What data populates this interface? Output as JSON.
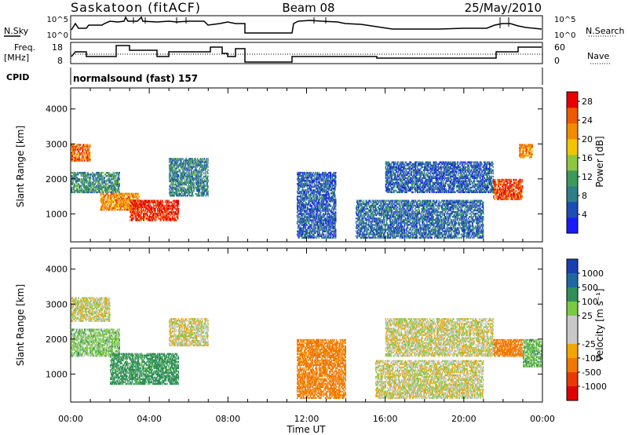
{
  "header": {
    "station": "Saskatoon (fitACF)",
    "beam": "Beam 08",
    "date": "25/May/2010"
  },
  "top_panels": {
    "nsky_label": "N.Sky",
    "nsky_ticks": [
      "10^5",
      "10^0"
    ],
    "nsearch_label": "N.Search",
    "nsearch_ticks": [
      "10^5",
      "10^0"
    ],
    "freq_label": [
      "Freq.",
      "[MHz]"
    ],
    "freq_ticks": [
      "18",
      "8"
    ],
    "nave_label": "Nave",
    "nave_ticks": [
      "60",
      "0"
    ],
    "cpid_label": "CPID",
    "cpid_value": "normalsound (fast) 157"
  },
  "colors": {
    "power_scale": [
      "#1a1aff",
      "#1e4db5",
      "#2f7f88",
      "#3c9a5a",
      "#8dc63f",
      "#f2c500",
      "#f28c00",
      "#ee5a00",
      "#e80000"
    ],
    "velocity_scale": [
      "#1a3fb0",
      "#1e6aa0",
      "#2e8f58",
      "#7ac943",
      "#c8c8c8",
      "#c8c8c8",
      "#f2a600",
      "#f07800",
      "#e83a00",
      "#e00000"
    ]
  },
  "chart_data": [
    {
      "type": "heatmap",
      "name": "power",
      "xlabel": "Time UT",
      "ylabel": "Slant Range [km]",
      "x_ticks": [
        "00:00",
        "04:00",
        "08:00",
        "12:00",
        "16:00",
        "20:00",
        "00:00"
      ],
      "y_ticks": [
        1000,
        2000,
        3000,
        4000
      ],
      "xlim": [
        0,
        24
      ],
      "ylim": [
        200,
        4600
      ],
      "colorbar_label": "Power [dB]",
      "colorbar_ticks": [
        4,
        8,
        12,
        16,
        20,
        24,
        28
      ],
      "colorbar_range": [
        0,
        30
      ],
      "data_gap_hours": [
        8.9,
        11.5
      ],
      "regions": [
        {
          "t0": 0.0,
          "t1": 1.0,
          "r0": 2500,
          "r1": 3000,
          "level": 24
        },
        {
          "t0": 0.0,
          "t1": 2.5,
          "r0": 1600,
          "r1": 2200,
          "level": 10
        },
        {
          "t0": 1.5,
          "t1": 3.5,
          "r0": 1100,
          "r1": 1600,
          "level": 22
        },
        {
          "t0": 3.0,
          "t1": 5.5,
          "r0": 800,
          "r1": 1400,
          "level": 28
        },
        {
          "t0": 5.0,
          "t1": 7.0,
          "r0": 1500,
          "r1": 2600,
          "level": 9
        },
        {
          "t0": 11.5,
          "t1": 13.5,
          "r0": 300,
          "r1": 2200,
          "level": 6
        },
        {
          "t0": 14.5,
          "t1": 21.0,
          "r0": 300,
          "r1": 1400,
          "level": 7
        },
        {
          "t0": 16.0,
          "t1": 21.5,
          "r0": 1600,
          "r1": 2500,
          "level": 6
        },
        {
          "t0": 21.5,
          "t1": 23.0,
          "r0": 1400,
          "r1": 2000,
          "level": 26
        },
        {
          "t0": 22.8,
          "t1": 23.5,
          "r0": 2600,
          "r1": 3000,
          "level": 22
        }
      ]
    },
    {
      "type": "heatmap",
      "name": "velocity",
      "xlabel": "Time UT",
      "ylabel": "Slant Range [km]",
      "x_ticks": [
        "00:00",
        "04:00",
        "08:00",
        "12:00",
        "16:00",
        "20:00",
        "00:00"
      ],
      "y_ticks": [
        1000,
        2000,
        3000,
        4000
      ],
      "xlim": [
        0,
        24
      ],
      "ylim": [
        200,
        4600
      ],
      "colorbar_label": "Velocity [m s⁻¹]",
      "colorbar_ticks": [
        1000,
        500,
        100,
        25,
        -25,
        -100,
        -500,
        -1000
      ],
      "data_gap_hours": [
        8.9,
        11.5
      ],
      "regions": [
        {
          "t0": 0.0,
          "t1": 2.5,
          "r0": 1500,
          "r1": 2300,
          "velocity": 60
        },
        {
          "t0": 2.0,
          "t1": 5.5,
          "r0": 700,
          "r1": 1600,
          "velocity": 150
        },
        {
          "t0": 0.0,
          "t1": 2.0,
          "r0": 2500,
          "r1": 3200,
          "velocity": 0
        },
        {
          "t0": 5.0,
          "t1": 7.0,
          "r0": 1800,
          "r1": 2600,
          "velocity": 0
        },
        {
          "t0": 11.5,
          "t1": 14.0,
          "r0": 300,
          "r1": 2000,
          "velocity": -150
        },
        {
          "t0": 15.5,
          "t1": 21.0,
          "r0": 300,
          "r1": 1400,
          "velocity": 0
        },
        {
          "t0": 16.0,
          "t1": 21.5,
          "r0": 1500,
          "r1": 2600,
          "velocity": 0
        },
        {
          "t0": 21.5,
          "t1": 23.0,
          "r0": 1500,
          "r1": 2000,
          "velocity": -200
        },
        {
          "t0": 23.0,
          "t1": 24.0,
          "r0": 1200,
          "r1": 2000,
          "velocity": 80
        }
      ]
    }
  ]
}
